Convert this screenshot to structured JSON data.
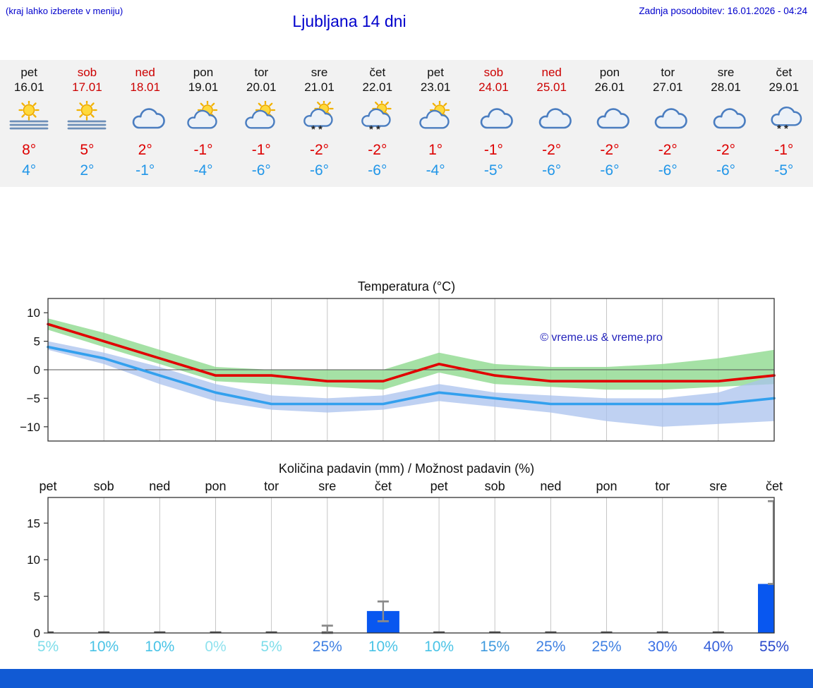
{
  "colors": {
    "accent_text": "#0000cc",
    "weekend": "#cc0000",
    "temp_max": "#dd0000",
    "temp_min": "#2196e8",
    "strip_bg": "#f2f2f2",
    "footer_bar": "#115ad4"
  },
  "header": {
    "hint": "(kraj lahko izberete v meniju)",
    "title": "Ljubljana 14 dni",
    "updated": "Zadnja posodobitev: 16.01.2026 - 04:24"
  },
  "forecast": {
    "days": [
      {
        "name": "pet",
        "date": "16.01",
        "weekend": false,
        "icon": "sun-fog",
        "tmax": "8°",
        "tmin": "4°"
      },
      {
        "name": "sob",
        "date": "17.01",
        "weekend": true,
        "icon": "sun-fog",
        "tmax": "5°",
        "tmin": "2°"
      },
      {
        "name": "ned",
        "date": "18.01",
        "weekend": true,
        "icon": "cloudy",
        "tmax": "2°",
        "tmin": "-1°"
      },
      {
        "name": "pon",
        "date": "19.01",
        "weekend": false,
        "icon": "partly-cloudy",
        "tmax": "-1°",
        "tmin": "-4°"
      },
      {
        "name": "tor",
        "date": "20.01",
        "weekend": false,
        "icon": "partly-cloudy",
        "tmax": "-1°",
        "tmin": "-6°"
      },
      {
        "name": "sre",
        "date": "21.01",
        "weekend": false,
        "icon": "partly-cloudy-snow",
        "tmax": "-2°",
        "tmin": "-6°"
      },
      {
        "name": "čet",
        "date": "22.01",
        "weekend": false,
        "icon": "partly-cloudy-snow",
        "tmax": "-2°",
        "tmin": "-6°"
      },
      {
        "name": "pet",
        "date": "23.01",
        "weekend": false,
        "icon": "partly-cloudy",
        "tmax": "1°",
        "tmin": "-4°"
      },
      {
        "name": "sob",
        "date": "24.01",
        "weekend": true,
        "icon": "cloudy",
        "tmax": "-1°",
        "tmin": "-5°"
      },
      {
        "name": "ned",
        "date": "25.01",
        "weekend": true,
        "icon": "cloudy",
        "tmax": "-2°",
        "tmin": "-6°"
      },
      {
        "name": "pon",
        "date": "26.01",
        "weekend": false,
        "icon": "cloudy",
        "tmax": "-2°",
        "tmin": "-6°"
      },
      {
        "name": "tor",
        "date": "27.01",
        "weekend": false,
        "icon": "cloudy",
        "tmax": "-2°",
        "tmin": "-6°"
      },
      {
        "name": "sre",
        "date": "28.01",
        "weekend": false,
        "icon": "cloudy",
        "tmax": "-2°",
        "tmin": "-6°"
      },
      {
        "name": "čet",
        "date": "29.01",
        "weekend": false,
        "icon": "cloudy-snow",
        "tmax": "-1°",
        "tmin": "-5°"
      }
    ]
  },
  "chart_data": [
    {
      "type": "line",
      "title": "Temperatura (°C)",
      "x": [
        "16.01",
        "17.01",
        "18.01",
        "19.01",
        "20.01",
        "21.01",
        "22.01",
        "23.01",
        "24.01",
        "25.01",
        "26.01",
        "27.01",
        "28.01",
        "29.01"
      ],
      "series": [
        {
          "name": "max-temperature",
          "color": "#e10000",
          "values": [
            8,
            5,
            2,
            -1,
            -1,
            -2,
            -2,
            1,
            -1,
            -2,
            -2,
            -2,
            -2,
            -1
          ]
        },
        {
          "name": "min-temperature",
          "color": "#33a0ee",
          "values": [
            4,
            2,
            -1,
            -4,
            -6,
            -6,
            -6,
            -4,
            -5,
            -6,
            -6,
            -6,
            -6,
            -5
          ]
        }
      ],
      "bands": [
        {
          "name": "max-temperature-range",
          "color": "#8fd98f",
          "opacity": 0.8,
          "upper": [
            9,
            6.5,
            3.5,
            0.5,
            0,
            0,
            0,
            3,
            1,
            0.5,
            0.5,
            1,
            2,
            3.5
          ],
          "lower": [
            7,
            4,
            1,
            -2,
            -2.5,
            -3,
            -3.5,
            -0.5,
            -2.5,
            -3,
            -3.5,
            -3.5,
            -3,
            -2.5
          ]
        },
        {
          "name": "min-temperature-range",
          "color": "#a9c2ee",
          "opacity": 0.75,
          "upper": [
            5,
            3,
            0.5,
            -2.5,
            -4.5,
            -5,
            -4.5,
            -2.5,
            -4,
            -4.5,
            -5,
            -5,
            -4,
            -1
          ],
          "lower": [
            3.5,
            1,
            -2.5,
            -5.5,
            -7,
            -7.5,
            -7,
            -5.5,
            -6.5,
            -7.5,
            -9,
            -10,
            -9.5,
            -9
          ]
        }
      ],
      "ylim": [
        -12.5,
        12.5
      ],
      "yticks": [
        10,
        5,
        0,
        -5,
        -10
      ],
      "grid": true,
      "watermark": "© vreme.us & vreme.pro",
      "watermark_color": "#2222bb"
    },
    {
      "type": "bar",
      "title": "Količina padavin (mm) / Možnost padavin (%)",
      "day_labels": [
        "pet",
        "sob",
        "ned",
        "pon",
        "tor",
        "sre",
        "čet",
        "pet",
        "sob",
        "ned",
        "pon",
        "tor",
        "sre",
        "čet"
      ],
      "values": [
        0,
        0,
        0,
        0,
        0,
        0,
        3,
        0,
        0,
        0,
        0,
        0,
        0,
        6.7
      ],
      "whiskers": [
        {
          "index": 5,
          "low": 0,
          "high": 1
        },
        {
          "index": 6,
          "low": 1.6,
          "high": 4.3
        },
        {
          "index": 13,
          "low": 6.7,
          "high": 18
        }
      ],
      "bar_color": "#0857f0",
      "probabilities": [
        {
          "label": "5%",
          "color": "#7eddea"
        },
        {
          "label": "10%",
          "color": "#49c3e6"
        },
        {
          "label": "10%",
          "color": "#49c3e6"
        },
        {
          "label": "0%",
          "color": "#8fe2ee"
        },
        {
          "label": "5%",
          "color": "#7eddea"
        },
        {
          "label": "25%",
          "color": "#3f80e2"
        },
        {
          "label": "10%",
          "color": "#49c3e6"
        },
        {
          "label": "10%",
          "color": "#49c3e6"
        },
        {
          "label": "15%",
          "color": "#3f9ade"
        },
        {
          "label": "25%",
          "color": "#3f80e2"
        },
        {
          "label": "25%",
          "color": "#3f80e2"
        },
        {
          "label": "30%",
          "color": "#3a70e6"
        },
        {
          "label": "40%",
          "color": "#3660da"
        },
        {
          "label": "55%",
          "color": "#2a49cc"
        }
      ],
      "ylim": [
        0,
        18.5
      ],
      "yticks": [
        0,
        5,
        10,
        15
      ],
      "grid": true
    }
  ]
}
